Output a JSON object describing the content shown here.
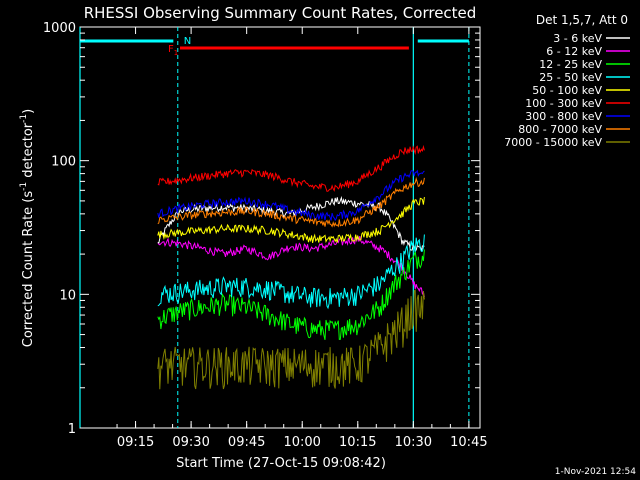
{
  "chart_data": {
    "type": "line",
    "title": "RHESSI Observing Summary Count Rates, Corrected",
    "xlabel": "Start Time (27-Oct-15 09:08:42)",
    "ylabel_prefix": "Corrected Count Rate (s",
    "ylabel_sup1": "-1",
    "ylabel_mid": " detector",
    "ylabel_sup2": "-1",
    "ylabel_suffix": ")",
    "y_scale": "log",
    "ylim": [
      1,
      1000
    ],
    "xlim_minutes": [
      9.0,
      10.8
    ],
    "x_ticks": [
      {
        "label": "09:15",
        "value": 9.25
      },
      {
        "label": "09:30",
        "value": 9.5
      },
      {
        "label": "09:45",
        "value": 9.75
      },
      {
        "label": "10:00",
        "value": 10.0
      },
      {
        "label": "10:15",
        "value": 10.25
      },
      {
        "label": "10:30",
        "value": 10.5
      },
      {
        "label": "10:45",
        "value": 10.75
      }
    ],
    "y_ticks": [
      {
        "label": "1",
        "value": 1
      },
      {
        "label": "10",
        "value": 10
      },
      {
        "label": "100",
        "value": 100
      },
      {
        "label": "1000",
        "value": 1000
      }
    ],
    "legend_title": "Det 1,5,7, Att 0",
    "legend_position": "right",
    "timestamp": "1-Nov-2021 12:54",
    "flags": {
      "night_label": "N",
      "flare_label": "F",
      "flare_sub": "1",
      "night_color": "#00ffff",
      "flare_color": "#ff0000",
      "night_bars": [
        [
          9.0,
          9.42
        ],
        [
          10.52,
          10.75
        ]
      ],
      "flare_bar": [
        9.45,
        10.48
      ],
      "solid_lines": [
        9.0,
        10.5
      ],
      "dashed_lines": [
        9.44,
        10.75
      ]
    },
    "series": [
      {
        "name": "3 - 6 keV",
        "color": "#ffffff",
        "x": [
          9.35,
          9.45,
          9.55,
          9.65,
          9.75,
          9.85,
          9.95,
          10.05,
          10.15,
          10.25,
          10.35,
          10.45,
          10.5,
          10.55
        ],
        "y": [
          24,
          42,
          44,
          45,
          44,
          42,
          40,
          45,
          50,
          48,
          45,
          25,
          22,
          22
        ]
      },
      {
        "name": "6 - 12 keV",
        "color": "#ff00ff",
        "x": [
          9.35,
          9.45,
          9.55,
          9.65,
          9.75,
          9.85,
          9.95,
          10.05,
          10.15,
          10.25,
          10.35,
          10.45,
          10.5,
          10.55
        ],
        "y": [
          25,
          24,
          22,
          20,
          22,
          19,
          23,
          22,
          24,
          26,
          22,
          16,
          12,
          10
        ]
      },
      {
        "name": "12 - 25 keV",
        "color": "#00ff00",
        "x": [
          9.35,
          9.45,
          9.55,
          9.65,
          9.75,
          9.85,
          9.95,
          10.05,
          10.15,
          10.25,
          10.35,
          10.45,
          10.5,
          10.55
        ],
        "y": [
          6.5,
          7.5,
          8,
          8.5,
          8,
          7,
          6,
          5.5,
          5.5,
          6,
          8,
          14,
          18,
          20
        ]
      },
      {
        "name": "25 - 50 keV",
        "color": "#00ffff",
        "x": [
          9.35,
          9.45,
          9.55,
          9.65,
          9.75,
          9.85,
          9.95,
          10.05,
          10.15,
          10.25,
          10.35,
          10.45,
          10.5,
          10.55
        ],
        "y": [
          10,
          10.5,
          11,
          11.5,
          11.5,
          11,
          10,
          9.5,
          9.5,
          10,
          12,
          18,
          23,
          25
        ]
      },
      {
        "name": "50 - 100 keV",
        "color": "#ffff00",
        "x": [
          9.35,
          9.45,
          9.55,
          9.65,
          9.75,
          9.85,
          9.95,
          10.05,
          10.15,
          10.25,
          10.35,
          10.45,
          10.5,
          10.55
        ],
        "y": [
          28,
          29,
          30,
          31,
          31,
          30,
          28,
          26,
          26,
          27,
          30,
          40,
          48,
          50
        ]
      },
      {
        "name": "100 - 300 keV",
        "color": "#ff0000",
        "x": [
          9.35,
          9.45,
          9.55,
          9.65,
          9.75,
          9.85,
          9.95,
          10.05,
          10.15,
          10.25,
          10.35,
          10.45,
          10.5,
          10.55
        ],
        "y": [
          68,
          72,
          76,
          80,
          82,
          78,
          70,
          64,
          63,
          70,
          90,
          118,
          122,
          120
        ]
      },
      {
        "name": "300 - 800 keV",
        "color": "#0000ff",
        "x": [
          9.35,
          9.45,
          9.55,
          9.65,
          9.75,
          9.85,
          9.95,
          10.05,
          10.15,
          10.25,
          10.35,
          10.45,
          10.5,
          10.55
        ],
        "y": [
          40,
          44,
          47,
          49,
          50,
          47,
          42,
          39,
          38,
          42,
          55,
          75,
          80,
          80
        ]
      },
      {
        "name": "800 - 7000 keV",
        "color": "#ff7f00",
        "x": [
          9.35,
          9.45,
          9.55,
          9.65,
          9.75,
          9.85,
          9.95,
          10.05,
          10.15,
          10.25,
          10.35,
          10.45,
          10.5,
          10.55
        ],
        "y": [
          36,
          38,
          40,
          41,
          42,
          40,
          37,
          35,
          34,
          36,
          46,
          62,
          68,
          70
        ]
      },
      {
        "name": "7000 - 15000 keV",
        "color": "#7f7f00",
        "x": [
          9.35,
          9.45,
          9.55,
          9.65,
          9.75,
          9.85,
          9.95,
          10.05,
          10.15,
          10.25,
          10.35,
          10.45,
          10.5,
          10.55
        ],
        "y": [
          3,
          3,
          3,
          3,
          3,
          3,
          3,
          3,
          3,
          3,
          4,
          6,
          8,
          8
        ]
      }
    ]
  }
}
